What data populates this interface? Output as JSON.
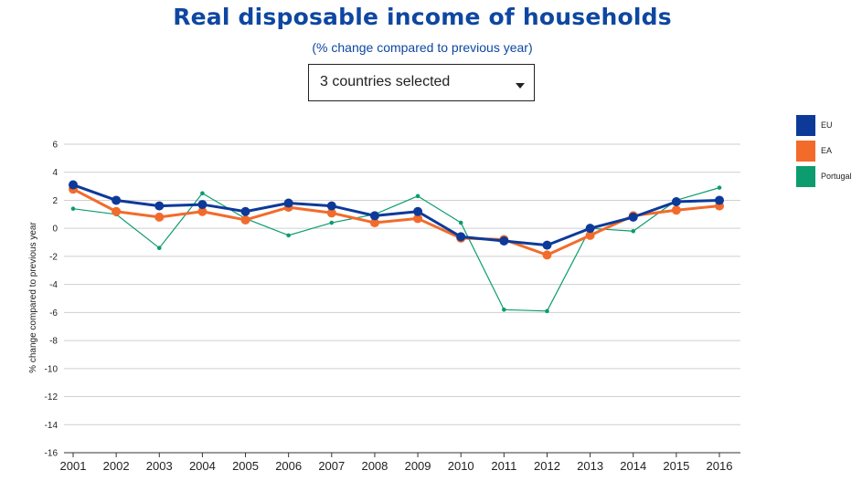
{
  "header": {
    "title": "Real disposable income of households",
    "subtitle": "(% change compared to previous year)"
  },
  "selector": {
    "label": "3 countries selected",
    "icon": "chevron-down-icon"
  },
  "chart_data": {
    "type": "line",
    "title": "Real disposable income of households",
    "subtitle": "(% change compared to previous year)",
    "ylabel": "% change compared to previous year",
    "xlabel": "",
    "ylim": [
      -16,
      6
    ],
    "yticks": [
      6,
      4,
      2,
      0,
      -2,
      -4,
      -6,
      -8,
      -10,
      -12,
      -14,
      -16
    ],
    "grid": true,
    "legend_position": "right",
    "categories": [
      "2001",
      "2002",
      "2003",
      "2004",
      "2005",
      "2006",
      "2007",
      "2008",
      "2009",
      "2010",
      "2011",
      "2012",
      "2013",
      "2014",
      "2015",
      "2016"
    ],
    "series": [
      {
        "name": "EU",
        "color": "#0d3a99",
        "values": [
          3.1,
          2.0,
          1.6,
          1.7,
          1.2,
          1.8,
          1.6,
          0.9,
          1.2,
          -0.6,
          -0.9,
          -1.2,
          0.0,
          0.8,
          1.9,
          2.0
        ]
      },
      {
        "name": "EA",
        "color": "#f26b2b",
        "values": [
          2.8,
          1.2,
          0.8,
          1.2,
          0.6,
          1.5,
          1.1,
          0.4,
          0.7,
          -0.7,
          -0.8,
          -1.9,
          -0.5,
          0.9,
          1.3,
          1.6
        ]
      },
      {
        "name": "Portugal",
        "color": "#0c9c6e",
        "values": [
          1.4,
          1.0,
          -1.4,
          2.5,
          0.7,
          -0.5,
          0.4,
          1.0,
          2.3,
          0.4,
          -5.8,
          -5.9,
          0.0,
          -0.2,
          2.0,
          2.9
        ]
      }
    ]
  }
}
